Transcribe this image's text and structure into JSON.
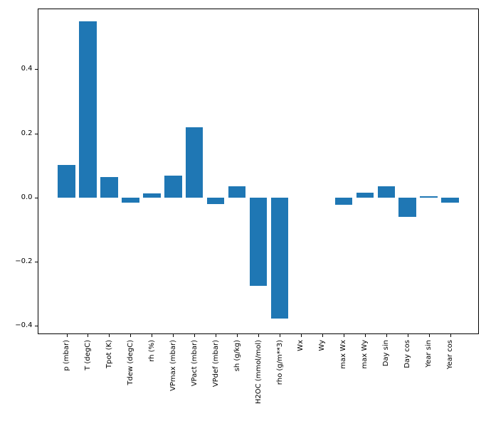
{
  "chart_data": {
    "type": "bar",
    "title": "",
    "xlabel": "",
    "ylabel": "",
    "categories": [
      "p (mbar)",
      "T (degC)",
      "Tpot (K)",
      "Tdew (degC)",
      "rh (%)",
      "VPmax (mbar)",
      "VPact (mbar)",
      "VPdef (mbar)",
      "sh (g/kg)",
      "H2OC (mmol/mol)",
      "rho (g/m**3)",
      "Wx",
      "Wy",
      "max Wx",
      "max Wy",
      "Day sin",
      "Day cos",
      "Year sin",
      "Year cos"
    ],
    "values": [
      0.102,
      0.549,
      0.064,
      -0.015,
      0.013,
      0.069,
      0.218,
      -0.021,
      0.035,
      -0.275,
      -0.378,
      0.0,
      0.0,
      -0.022,
      0.016,
      0.034,
      -0.061,
      0.003,
      -0.017
    ],
    "bar_color": "#1f77b4",
    "axis_color": "#000000",
    "ylim": [
      -0.426,
      0.589
    ],
    "yticks": [
      0.4,
      0.2,
      0.0,
      -0.2,
      -0.4
    ],
    "ytick_labels": [
      "0.4",
      "0.2",
      "0.0",
      "−0.2",
      "−0.4"
    ],
    "x_tick_rotation": 90,
    "grid": false,
    "legend": "none"
  }
}
